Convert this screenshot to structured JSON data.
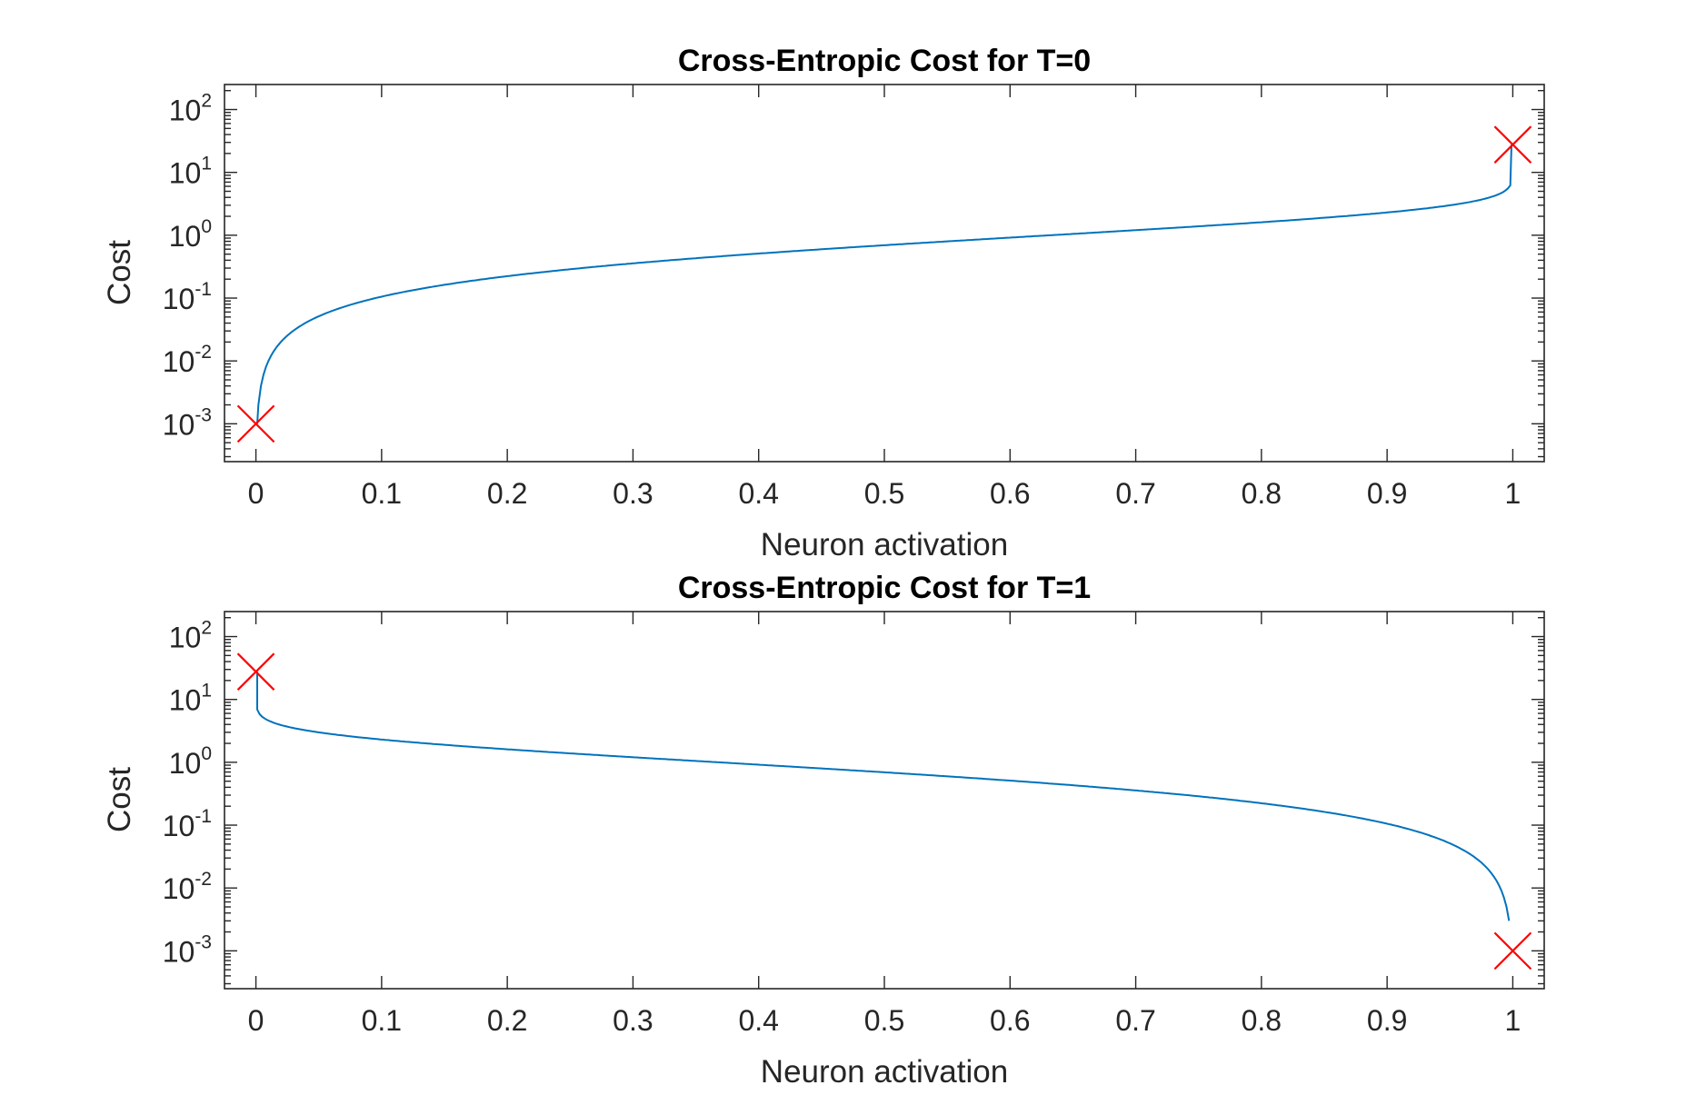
{
  "chart_data": [
    {
      "type": "line",
      "title": "Cross-Entropic Cost for T=0",
      "xlabel": "Neuron activation",
      "ylabel": "Cost",
      "xlim": [
        -0.025,
        1.025
      ],
      "ylim": [
        0.00025,
        250
      ],
      "yscale": "log",
      "grid": false,
      "xticks": [
        0,
        0.1,
        0.2,
        0.3,
        0.4,
        0.5,
        0.6,
        0.7,
        0.8,
        0.9,
        1
      ],
      "xtick_labels": [
        "0",
        "0.1",
        "0.2",
        "0.3",
        "0.4",
        "0.5",
        "0.6",
        "0.7",
        "0.8",
        "0.9",
        "1"
      ],
      "yticks": [
        0.001,
        0.01,
        0.1,
        1,
        10,
        100
      ],
      "ytick_exponents": [
        "-3",
        "-2",
        "-1",
        "0",
        "1",
        "2"
      ],
      "ytick_base": "10",
      "series": [
        {
          "color": "#0072BD",
          "x": [
            0.001,
            0.002,
            0.005,
            0.01,
            0.02,
            0.03,
            0.05,
            0.08,
            0.1,
            0.15,
            0.2,
            0.3,
            0.4,
            0.5,
            0.6,
            0.7,
            0.8,
            0.85,
            0.9,
            0.95,
            0.98,
            0.99,
            0.995,
            0.998,
            0.999,
            0.999
          ],
          "y": [
            0.001,
            0.002,
            0.005,
            0.01,
            0.0202,
            0.0305,
            0.0513,
            0.0834,
            0.1054,
            0.1625,
            0.2231,
            0.3567,
            0.5108,
            0.6931,
            0.9163,
            1.204,
            1.609,
            1.897,
            2.303,
            2.996,
            3.912,
            4.605,
            5.298,
            6.215,
            6.908,
            27.63
          ]
        }
      ],
      "markers": [
        {
          "x": 0,
          "y": 0.001,
          "symbol": "x",
          "color": "#FF0000"
        },
        {
          "x": 1,
          "y": 27.63,
          "symbol": "x",
          "color": "#FF0000"
        }
      ]
    },
    {
      "type": "line",
      "title": "Cross-Entropic Cost for T=1",
      "xlabel": "Neuron activation",
      "ylabel": "Cost",
      "xlim": [
        -0.025,
        1.025
      ],
      "ylim": [
        0.00025,
        250
      ],
      "yscale": "log",
      "grid": false,
      "xticks": [
        0,
        0.1,
        0.2,
        0.3,
        0.4,
        0.5,
        0.6,
        0.7,
        0.8,
        0.9,
        1
      ],
      "xtick_labels": [
        "0",
        "0.1",
        "0.2",
        "0.3",
        "0.4",
        "0.5",
        "0.6",
        "0.7",
        "0.8",
        "0.9",
        "1"
      ],
      "yticks": [
        0.001,
        0.01,
        0.1,
        1,
        10,
        100
      ],
      "ytick_exponents": [
        "-3",
        "-2",
        "-1",
        "0",
        "1",
        "2"
      ],
      "ytick_base": "10",
      "series": [
        {
          "color": "#0072BD",
          "x": [
            0.001,
            0.001,
            0.002,
            0.005,
            0.01,
            0.02,
            0.05,
            0.1,
            0.15,
            0.2,
            0.3,
            0.4,
            0.5,
            0.6,
            0.7,
            0.8,
            0.85,
            0.9,
            0.92,
            0.95,
            0.97,
            0.98,
            0.99,
            0.995,
            0.998,
            0.999
          ],
          "y": [
            27.63,
            6.908,
            6.215,
            5.298,
            4.605,
            3.912,
            2.996,
            2.303,
            1.897,
            1.609,
            1.204,
            0.9163,
            0.6931,
            0.5108,
            0.3567,
            0.2231,
            0.1625,
            0.1054,
            0.0834,
            0.0513,
            0.0305,
            0.0202,
            0.01,
            0.005,
            0.002,
            0.001
          ]
        }
      ],
      "markers": [
        {
          "x": 0,
          "y": 27.63,
          "symbol": "x",
          "color": "#FF0000"
        },
        {
          "x": 1,
          "y": 0.001,
          "symbol": "x",
          "color": "#FF0000"
        }
      ]
    }
  ]
}
